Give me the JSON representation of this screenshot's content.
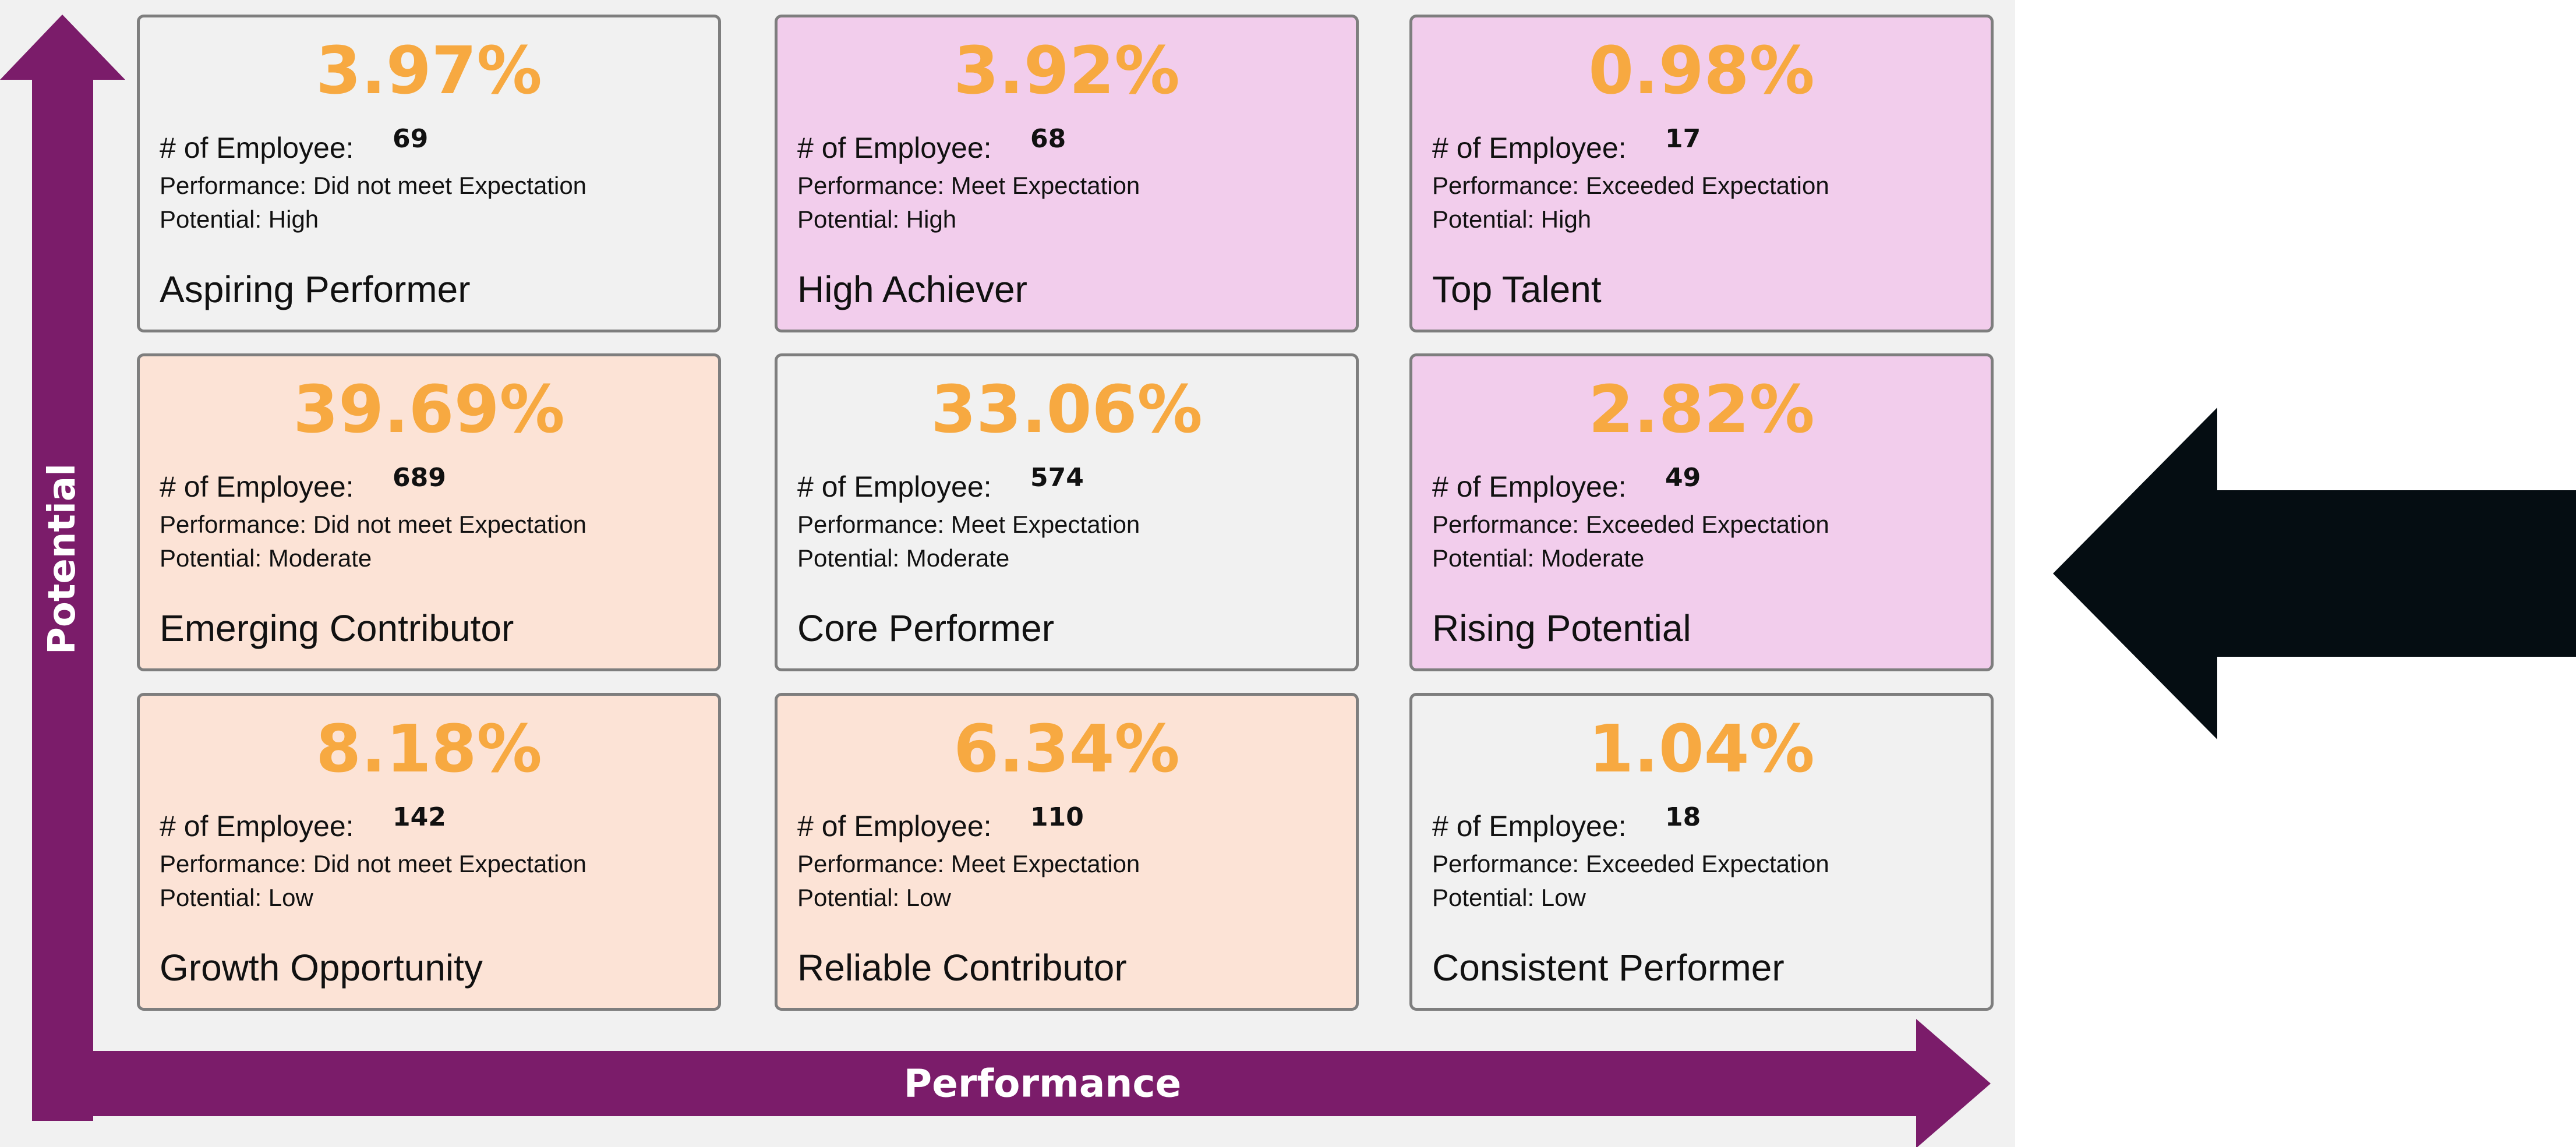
{
  "colors": {
    "axis": "#7b1c6a",
    "percent": "#f7a941",
    "gray": "#f1f1f1",
    "pink": "#f2cdec",
    "peach": "#fce3d6",
    "arrow": "#050d12"
  },
  "axes": {
    "y_label": "Potential",
    "x_label": "Performance"
  },
  "cells": [
    {
      "percent": "3.97%",
      "employee_label": "# of Employee:",
      "employee_count": "69",
      "performance": "Performance: Did not meet Expectation",
      "potential": "Potential: High",
      "name": "Aspiring Performer",
      "fill": "gray"
    },
    {
      "percent": "3.92%",
      "employee_label": "# of Employee:",
      "employee_count": "68",
      "performance": "Performance: Meet Expectation",
      "potential": "Potential: High",
      "name": "High Achiever",
      "fill": "pink"
    },
    {
      "percent": "0.98%",
      "employee_label": "# of Employee:",
      "employee_count": "17",
      "performance": "Performance: Exceeded Expectation",
      "potential": "Potential: High",
      "name": "Top Talent",
      "fill": "pink"
    },
    {
      "percent": "39.69%",
      "employee_label": "# of Employee:",
      "employee_count": "689",
      "performance": "Performance: Did not meet Expectation",
      "potential": "Potential: Moderate",
      "name": "Emerging Contributor",
      "fill": "peach"
    },
    {
      "percent": "33.06%",
      "employee_label": "# of Employee:",
      "employee_count": "574",
      "performance": "Performance: Meet Expectation",
      "potential": "Potential: Moderate",
      "name": "Core Performer",
      "fill": "gray"
    },
    {
      "percent": "2.82%",
      "employee_label": "# of Employee:",
      "employee_count": "49",
      "performance": "Performance: Exceeded  Expectation",
      "potential": "Potential: Moderate",
      "name": "Rising Potential",
      "fill": "pink"
    },
    {
      "percent": "8.18%",
      "employee_label": "# of Employee:",
      "employee_count": "142",
      "performance": "Performance: Did not meet Expectation",
      "potential": "Potential: Low",
      "name": "Growth Opportunity",
      "fill": "peach"
    },
    {
      "percent": "6.34%",
      "employee_label": "# of Employee:",
      "employee_count": "110",
      "performance": "Performance: Meet Expectation",
      "potential": "Potential: Low",
      "name": "Reliable Contributor",
      "fill": "peach"
    },
    {
      "percent": "1.04%",
      "employee_label": "# of Employee:",
      "employee_count": "18",
      "performance": "Performance: Exceeded  Expectation",
      "potential": "Potential: Low",
      "name": "Consistent Performer",
      "fill": "gray"
    }
  ],
  "pointer": {
    "icon": "left-arrow-icon",
    "direction": "left"
  }
}
